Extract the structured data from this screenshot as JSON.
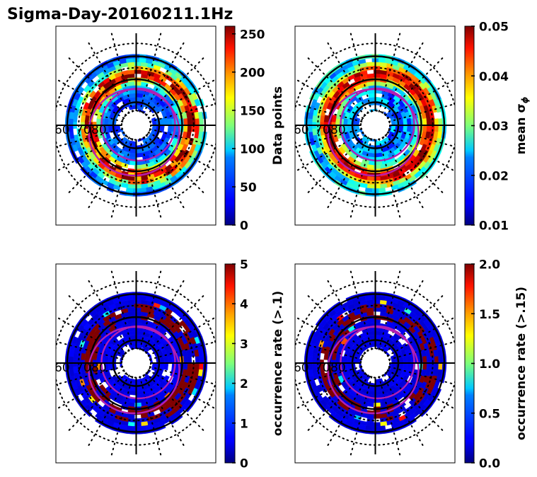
{
  "chart_data": {
    "title": "Sigma-Day-20160211.1Hz",
    "type": "heatmap",
    "projection": "polar (magnetic latitude / MLT)",
    "latitude_labels": [
      "60",
      "70",
      "80"
    ],
    "latitude_rings": [
      60,
      70,
      80
    ],
    "colormap": "jet",
    "panels": [
      {
        "id": "data-points",
        "position": "top-left",
        "colorbar_label": "Data points",
        "vmin": 0,
        "vmax": 260,
        "colorbar_ticks": [
          "0",
          "50",
          "100",
          "150",
          "200",
          "250"
        ],
        "tick_values": [
          0,
          50,
          100,
          150,
          200,
          250
        ],
        "profile": "counts"
      },
      {
        "id": "mean-sigma-phi",
        "position": "top-right",
        "colorbar_label": "mean σ",
        "colorbar_label_sub": "ϕ",
        "vmin": 0.01,
        "vmax": 0.05,
        "colorbar_ticks": [
          "0.01",
          "0.02",
          "0.03",
          "0.04",
          "0.05"
        ],
        "tick_values": [
          0.01,
          0.02,
          0.03,
          0.04,
          0.05
        ],
        "profile": "mean"
      },
      {
        "id": "occurrence-rate-01",
        "position": "bottom-left",
        "colorbar_label": "occurrence rate (>.1)",
        "vmin": 0,
        "vmax": 5,
        "colorbar_ticks": [
          "0",
          "1",
          "2",
          "3",
          "4",
          "5"
        ],
        "tick_values": [
          0,
          1,
          2,
          3,
          4,
          5
        ],
        "profile": "occ1"
      },
      {
        "id": "occurrence-rate-015",
        "position": "bottom-right",
        "colorbar_label": "occurrence rate (>.15)",
        "vmin": 0.0,
        "vmax": 2.0,
        "colorbar_ticks": [
          "0.0",
          "0.5",
          "1.0",
          "1.5",
          "2.0"
        ],
        "tick_values": [
          0.0,
          0.5,
          1.0,
          1.5,
          2.0
        ],
        "profile": "occ2"
      }
    ],
    "overlay": {
      "solid_rings": "black latitude circles at 60, 70, 80",
      "dotted_rings": "black dotted grid",
      "oval_boundaries": "magenta auroral oval (2 curves)",
      "oval_color": "#b31fb3"
    }
  }
}
